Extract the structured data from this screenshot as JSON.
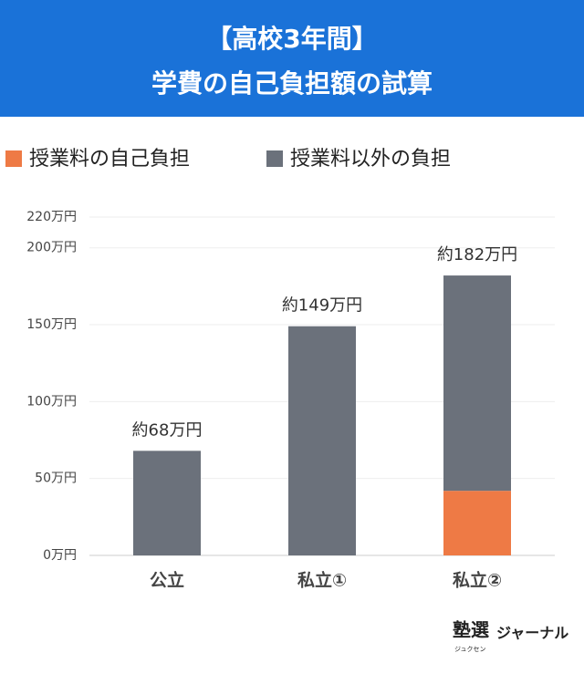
{
  "chart_data": {
    "type": "stacked_bar",
    "title": "【高校3年間】",
    "subtitle": "学費の自己負担額の試算",
    "categories": [
      "公立",
      "私立①",
      "私立②"
    ],
    "series": [
      {
        "name": "授業料の自己負担",
        "color": "#ee7a45",
        "values": [
          0,
          0,
          42
        ]
      },
      {
        "name": "授業料以外の負担",
        "color": "#6b717b",
        "values": [
          68,
          149,
          140
        ]
      }
    ],
    "totals": [
      68,
      149,
      182
    ],
    "total_labels": [
      "約68万円",
      "約149万円",
      "約182万円"
    ],
    "ylim": [
      0,
      220
    ],
    "yticks": [
      {
        "value": 0,
        "label": "0万円"
      },
      {
        "value": 50,
        "label": "50万円"
      },
      {
        "value": 100,
        "label": "100万円"
      },
      {
        "value": 150,
        "label": "150万円"
      },
      {
        "value": 200,
        "label": "200万円"
      },
      {
        "value": 220,
        "label": "220万円"
      }
    ],
    "grid": true,
    "legend": "top-left"
  },
  "footer": {
    "logo": "塾選",
    "logo_sub": "ジュクセン",
    "name": "ジャーナル"
  }
}
